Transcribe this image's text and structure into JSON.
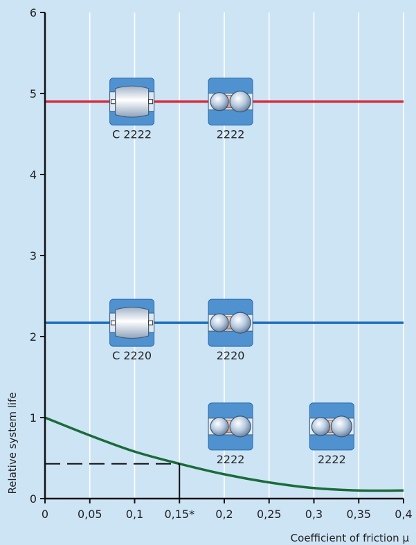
{
  "chart_data": {
    "type": "line",
    "xlabel": "Coefficient of friction μ",
    "ylabel": "Relative system life",
    "xlim": [
      0,
      0.4
    ],
    "ylim": [
      0,
      6
    ],
    "x_ticks": [
      0,
      0.05,
      0.1,
      0.15,
      0.2,
      0.25,
      0.3,
      0.35,
      0.4
    ],
    "x_tick_labels": [
      "0",
      "0,05",
      "0,1",
      "0,15*",
      "0,2",
      "0,25",
      "0,3",
      "0,35",
      "0,4"
    ],
    "y_ticks": [
      0,
      1,
      2,
      3,
      4,
      5,
      6
    ],
    "y_tick_labels": [
      "0",
      "1",
      "2",
      "3",
      "4",
      "5",
      "6"
    ],
    "grid": "vertical",
    "series": [
      {
        "color": "#d42a3c",
        "x": [
          0,
          0.4
        ],
        "y": [
          4.9,
          4.9
        ]
      },
      {
        "color": "#1f6fba",
        "x": [
          0,
          0.4
        ],
        "y": [
          2.17,
          2.17
        ]
      },
      {
        "color": "#1a6b3a",
        "x": [
          0,
          0.05,
          0.1,
          0.15,
          0.2,
          0.25,
          0.3,
          0.35,
          0.4
        ],
        "y": [
          1.0,
          0.78,
          0.58,
          0.43,
          0.3,
          0.2,
          0.13,
          0.1,
          0.1
        ]
      }
    ],
    "reference": {
      "x": 0.15,
      "y": 0.43,
      "color": "#111111"
    },
    "annotations": [
      {
        "label": "C 2222",
        "x": 0.097,
        "y": 4.9,
        "kind": "toroidal"
      },
      {
        "label": "2222",
        "x": 0.207,
        "y": 4.9,
        "kind": "ball"
      },
      {
        "label": "C 2220",
        "x": 0.097,
        "y": 2.17,
        "kind": "toroidal"
      },
      {
        "label": "2220",
        "x": 0.207,
        "y": 2.17,
        "kind": "ball"
      },
      {
        "label": "2222",
        "x": 0.207,
        "y": 0.89,
        "kind": "ball"
      },
      {
        "label": "2222",
        "x": 0.32,
        "y": 0.89,
        "kind": "ball"
      }
    ],
    "colors": {
      "background": "#cde4f5",
      "axis": "#111111",
      "grid": "#ffffff"
    }
  }
}
